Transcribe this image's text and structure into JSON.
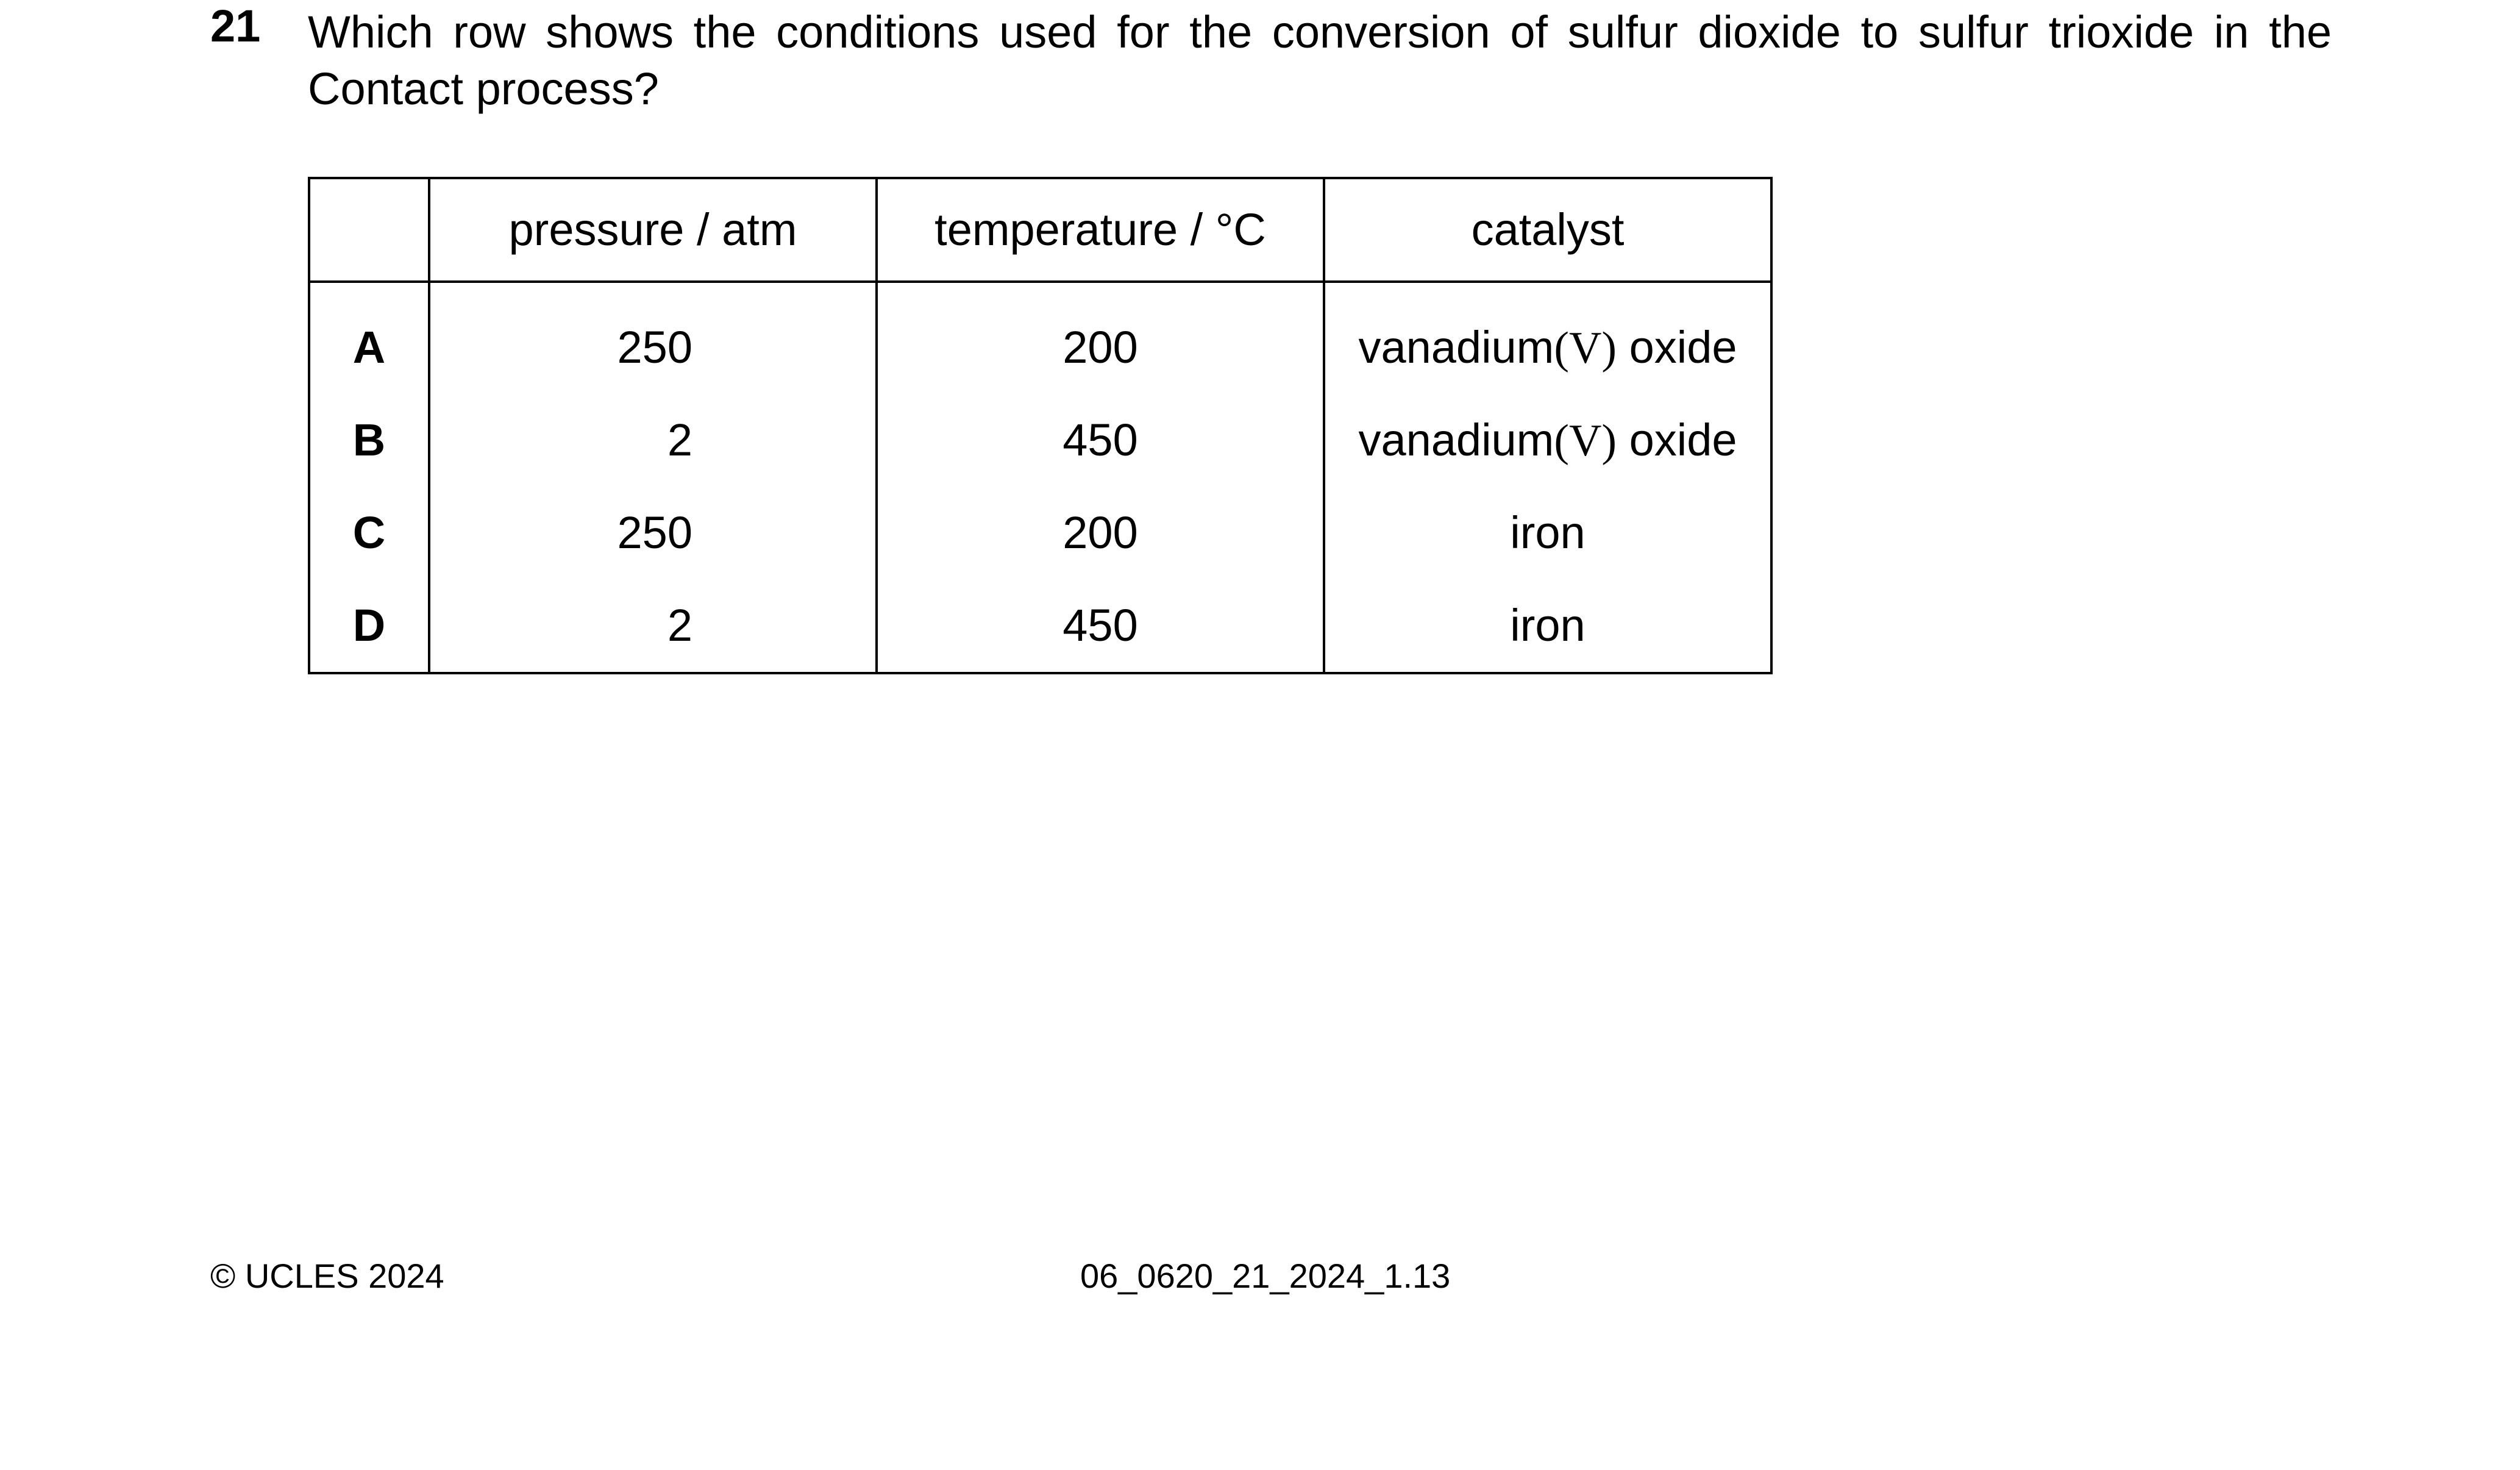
{
  "question": {
    "number": "21",
    "text": "Which row shows the conditions used for the conversion of sulfur dioxide to sulfur trioxide in the Contact process?"
  },
  "table": {
    "headers": [
      "",
      "pressure / atm",
      "temperature / °C",
      "catalyst"
    ],
    "rows": [
      {
        "option": "A",
        "pressure": "250",
        "temperature": "200",
        "catalyst_pre": "vanadium",
        "catalyst_ox": "(V)",
        "catalyst_post": " oxide"
      },
      {
        "option": "B",
        "pressure": "2",
        "temperature": "450",
        "catalyst_pre": "vanadium",
        "catalyst_ox": "(V)",
        "catalyst_post": " oxide"
      },
      {
        "option": "C",
        "pressure": "250",
        "temperature": "200",
        "catalyst_pre": "iron",
        "catalyst_ox": "",
        "catalyst_post": ""
      },
      {
        "option": "D",
        "pressure": "2",
        "temperature": "450",
        "catalyst_pre": "iron",
        "catalyst_ox": "",
        "catalyst_post": ""
      }
    ]
  },
  "footer": {
    "copyright": "© UCLES 2024",
    "code": "06_0620_21_2024_1.13"
  }
}
